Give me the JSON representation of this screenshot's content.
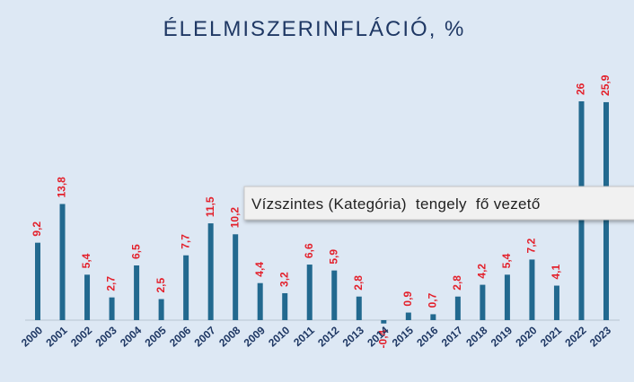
{
  "chart_data": {
    "type": "bar",
    "title": "ÉLELMISZERINFLÁCIÓ, %",
    "categories": [
      "2000",
      "2001",
      "2002",
      "2003",
      "2004",
      "2005",
      "2006",
      "2007",
      "2008",
      "2009",
      "2010",
      "2011",
      "2012",
      "2013",
      "2014",
      "2015",
      "2016",
      "2017",
      "2018",
      "2019",
      "2020",
      "2021",
      "2022",
      "2023"
    ],
    "values": [
      9.2,
      13.8,
      5.4,
      2.7,
      6.5,
      2.5,
      7.7,
      11.5,
      10.2,
      4.4,
      3.2,
      6.6,
      5.9,
      2.8,
      -0.4,
      0.9,
      0.7,
      2.8,
      4.2,
      5.4,
      7.2,
      4.1,
      26,
      25.9
    ],
    "value_labels": [
      "9,2",
      "13,8",
      "5,4",
      "2,7",
      "6,5",
      "2,5",
      "7,7",
      "11,5",
      "10,2",
      "4,4",
      "3,2",
      "6,6",
      "5,9",
      "2,8",
      "-0,4",
      "0,9",
      "0,7",
      "2,8",
      "4,2",
      "5,4",
      "7,2",
      "4,1",
      "26",
      "25,9"
    ],
    "color": "#22698f",
    "label_color": "#e3202b",
    "tooltip": "Vízszintes (Kategória)  tengely  fő vezető"
  }
}
